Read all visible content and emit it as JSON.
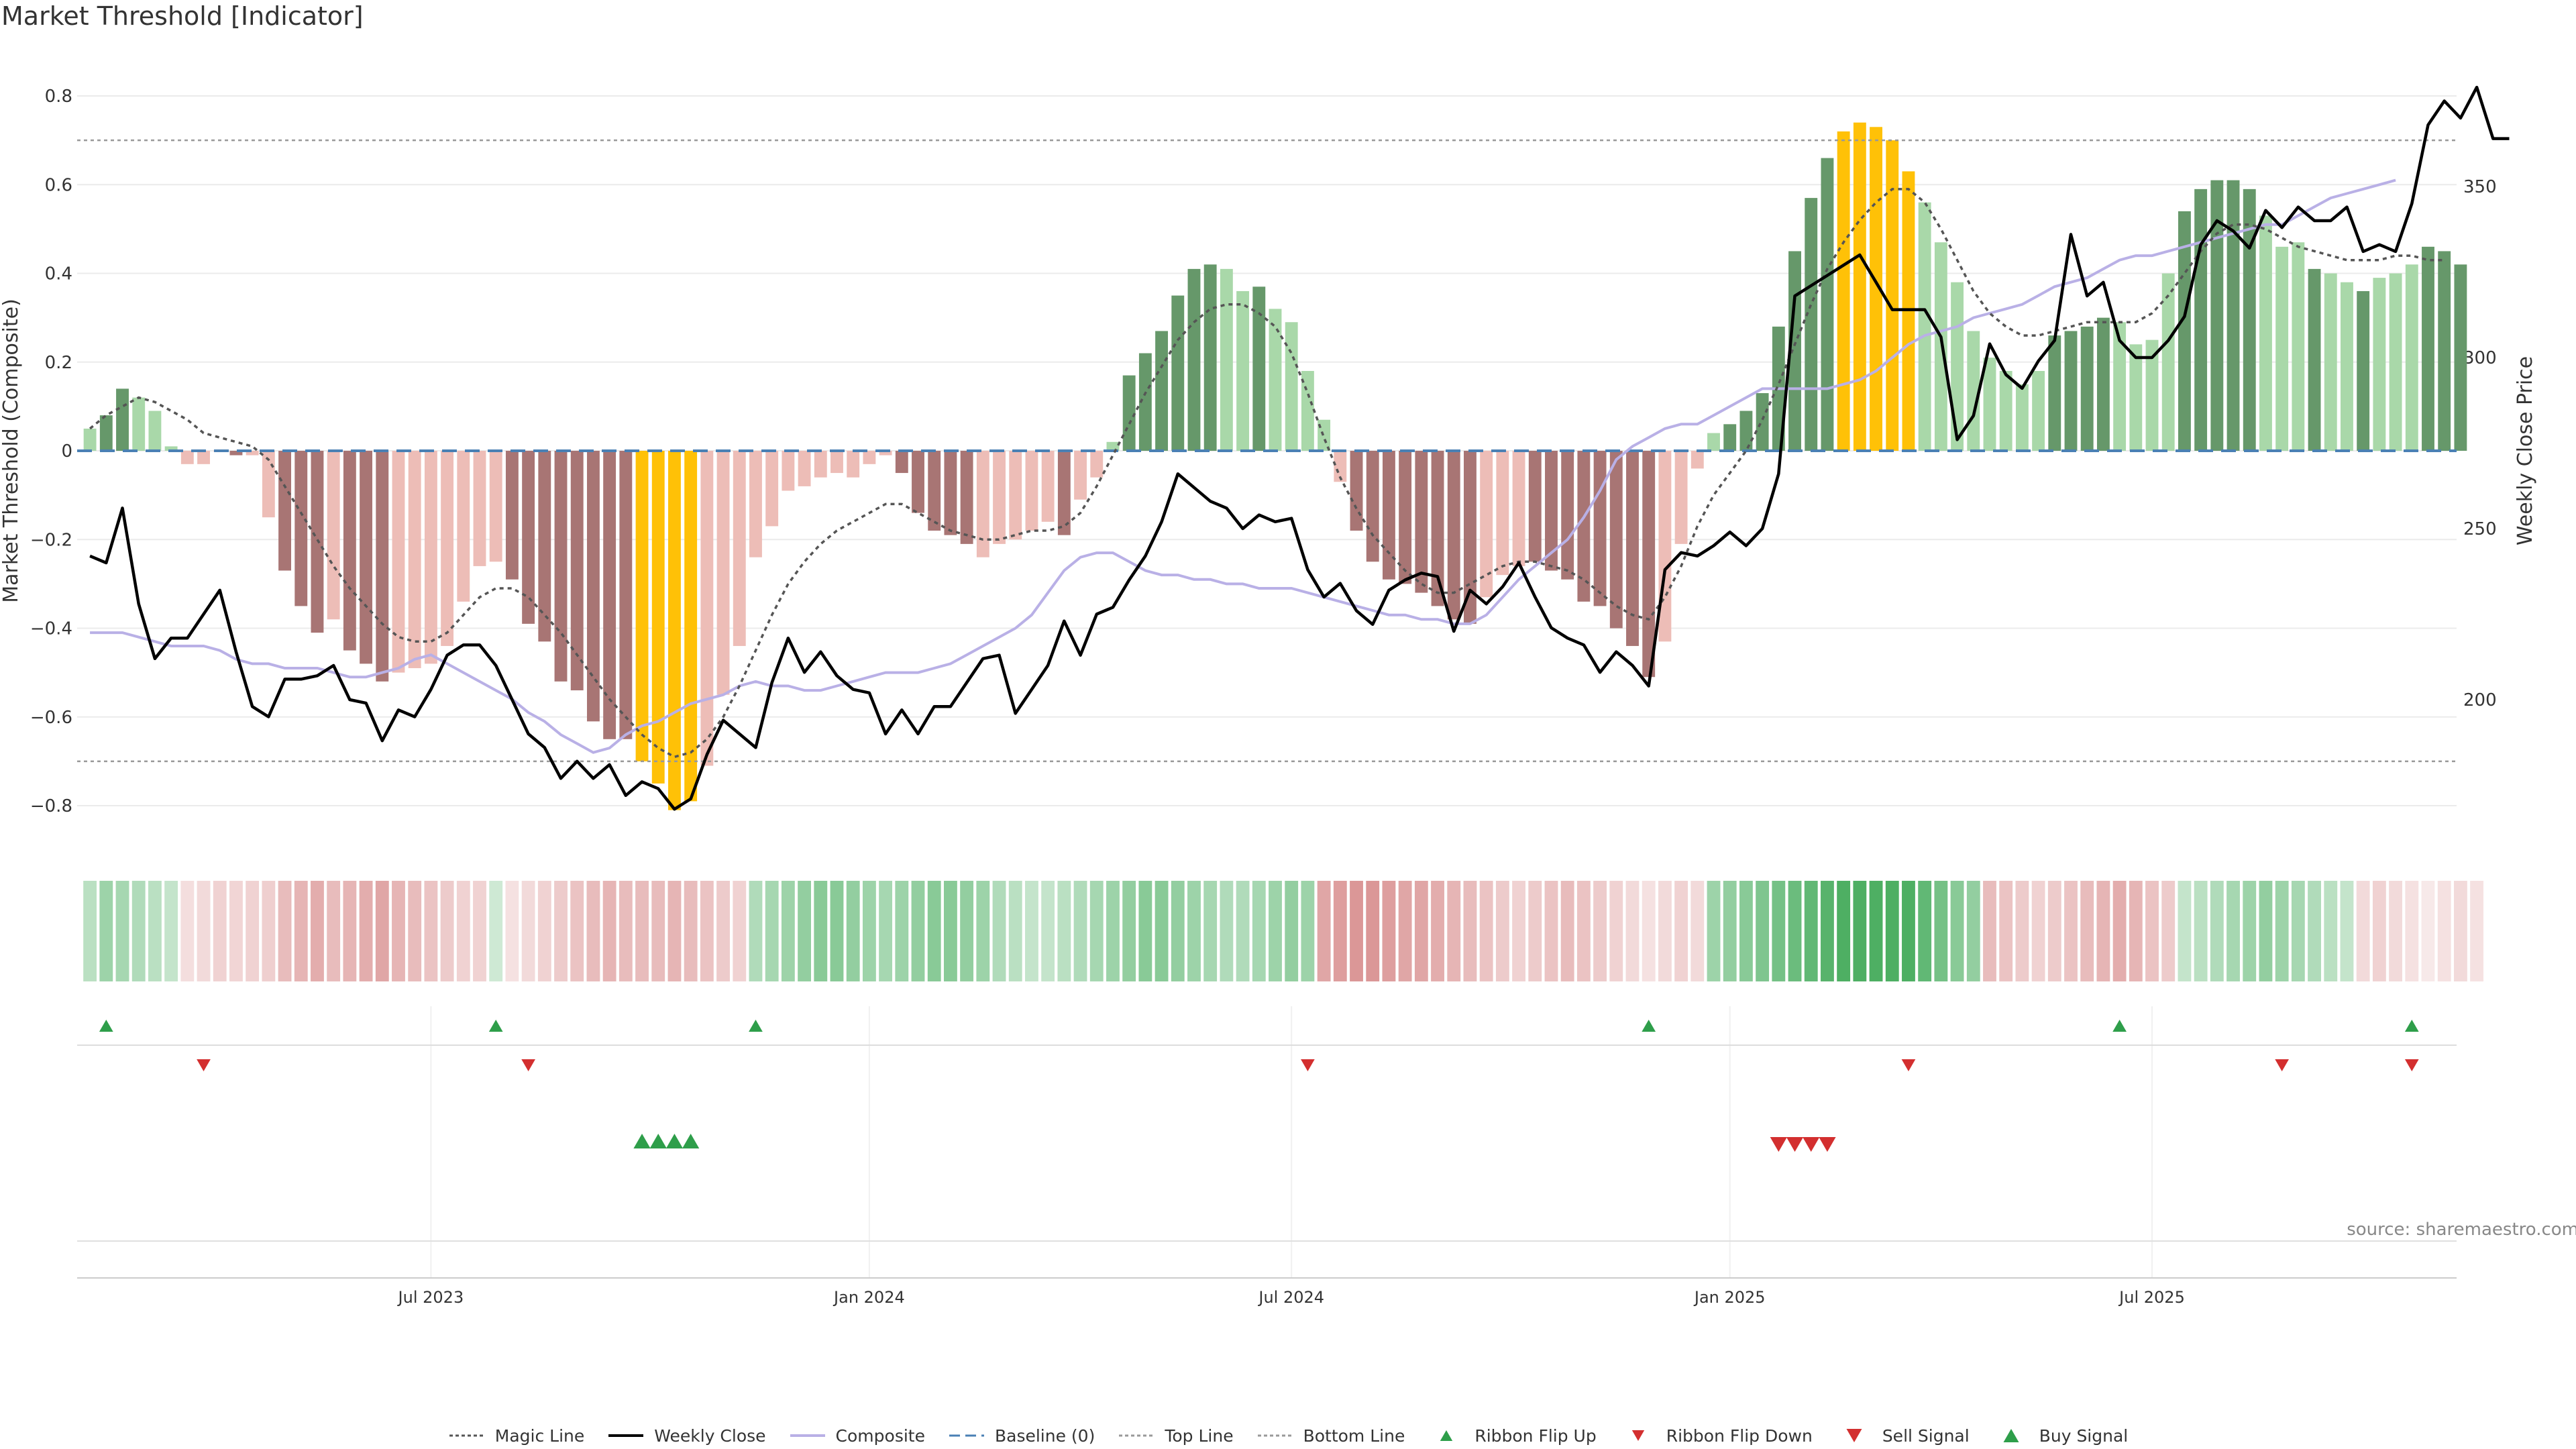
{
  "title": "Market Threshold [Indicator]",
  "source": "source: sharemaestro.com",
  "colors": {
    "bar_strong_pos": "#66986a",
    "bar_weak_pos": "#a9d8a9",
    "bar_strong_neg": "#a87574",
    "bar_weak_neg": "#edbdb7",
    "bar_extreme": "#ffc107",
    "magic": "#555555",
    "close": "#000000",
    "composite": "#b9b0e6",
    "baseline": "#4a80b4",
    "threshold_line": "#999999",
    "buy": "#2e9e4a",
    "sell": "#d32f2f"
  },
  "chart_data": {
    "type": "bar",
    "left_axis": {
      "label": "Market Threshold (Composite)",
      "ylim": [
        -0.9,
        0.9
      ],
      "ticks": [
        "0.8",
        "0.6",
        "0.4",
        "0.2",
        "0",
        "−0.2",
        "−0.4",
        "−0.6",
        "−0.8"
      ],
      "tick_values": [
        0.8,
        0.6,
        0.4,
        0.2,
        0,
        -0.2,
        -0.4,
        -0.6,
        -0.8
      ]
    },
    "right_axis": {
      "label": "Weekly Close Price",
      "ylim": [
        172,
        390
      ],
      "ticks": [
        "350",
        "300",
        "250",
        "200"
      ],
      "tick_values": [
        350,
        300,
        250,
        200
      ]
    },
    "x_axis": {
      "ticks": [
        "Jul 2023",
        "Jan 2024",
        "Jul 2024",
        "Jan 2025",
        "Jul 2025"
      ],
      "tick_weeks": [
        21,
        48,
        74,
        101,
        127
      ]
    },
    "top_line": 0.7,
    "bottom_line": -0.7,
    "baseline": 0,
    "bars": [
      0.05,
      0.08,
      0.14,
      0.12,
      0.09,
      0.01,
      -0.03,
      -0.03,
      0,
      -0.01,
      -0.01,
      -0.15,
      -0.27,
      -0.35,
      -0.41,
      -0.38,
      -0.45,
      -0.48,
      -0.52,
      -0.5,
      -0.49,
      -0.48,
      -0.44,
      -0.34,
      -0.26,
      -0.25,
      -0.29,
      -0.39,
      -0.43,
      -0.52,
      -0.54,
      -0.61,
      -0.65,
      -0.65,
      -0.7,
      -0.75,
      -0.81,
      -0.79,
      -0.71,
      -0.55,
      -0.44,
      -0.24,
      -0.17,
      -0.09,
      -0.08,
      -0.06,
      -0.05,
      -0.06,
      -0.03,
      -0.01,
      -0.05,
      -0.14,
      -0.18,
      -0.19,
      -0.21,
      -0.24,
      -0.21,
      -0.2,
      -0.18,
      -0.16,
      -0.19,
      -0.11,
      -0.06,
      0.02,
      0.17,
      0.22,
      0.27,
      0.35,
      0.41,
      0.42,
      0.41,
      0.36,
      0.37,
      0.32,
      0.29,
      0.18,
      0.07,
      -0.07,
      -0.18,
      -0.25,
      -0.29,
      -0.3,
      -0.32,
      -0.35,
      -0.38,
      -0.39,
      -0.33,
      -0.28,
      -0.26,
      -0.25,
      -0.27,
      -0.29,
      -0.34,
      -0.35,
      -0.4,
      -0.44,
      -0.51,
      -0.43,
      -0.21,
      -0.04,
      0.04,
      0.06,
      0.09,
      0.13,
      0.28,
      0.45,
      0.57,
      0.66,
      0.72,
      0.74,
      0.73,
      0.7,
      0.63,
      0.56,
      0.47,
      0.38,
      0.27,
      0.21,
      0.18,
      0.15,
      0.18,
      0.26,
      0.27,
      0.28,
      0.3,
      0.29,
      0.24,
      0.25,
      0.4,
      0.54,
      0.59,
      0.61,
      0.61,
      0.59,
      0.53,
      0.46,
      0.47,
      0.41,
      0.4,
      0.38,
      0.36,
      0.39,
      0.4,
      0.42,
      0.46,
      0.45,
      0.42
    ],
    "bar_categories": [
      "weak_pos",
      "strong_pos",
      "strong_pos",
      "weak_pos",
      "weak_pos",
      "weak_pos",
      "weak_neg",
      "weak_neg",
      "weak_neg",
      "strong_neg",
      "weak_neg",
      "weak_neg",
      "strong_neg",
      "strong_neg",
      "strong_neg",
      "weak_neg",
      "strong_neg",
      "strong_neg",
      "strong_neg",
      "weak_neg",
      "weak_neg",
      "weak_neg",
      "weak_neg",
      "weak_neg",
      "weak_neg",
      "weak_neg",
      "strong_neg",
      "strong_neg",
      "strong_neg",
      "strong_neg",
      "strong_neg",
      "strong_neg",
      "strong_neg",
      "strong_neg",
      "extreme",
      "extreme",
      "extreme",
      "extreme",
      "weak_neg",
      "weak_neg",
      "weak_neg",
      "weak_neg",
      "weak_neg",
      "weak_neg",
      "weak_neg",
      "weak_neg",
      "weak_neg",
      "weak_neg",
      "weak_neg",
      "weak_neg",
      "strong_neg",
      "strong_neg",
      "strong_neg",
      "strong_neg",
      "strong_neg",
      "weak_neg",
      "weak_neg",
      "weak_neg",
      "weak_neg",
      "weak_neg",
      "strong_neg",
      "weak_neg",
      "weak_neg",
      "weak_pos",
      "strong_pos",
      "strong_pos",
      "strong_pos",
      "strong_pos",
      "strong_pos",
      "strong_pos",
      "weak_pos",
      "weak_pos",
      "strong_pos",
      "weak_pos",
      "weak_pos",
      "weak_pos",
      "weak_pos",
      "weak_neg",
      "strong_neg",
      "strong_neg",
      "strong_neg",
      "strong_neg",
      "strong_neg",
      "strong_neg",
      "strong_neg",
      "strong_neg",
      "weak_neg",
      "weak_neg",
      "weak_neg",
      "strong_neg",
      "strong_neg",
      "strong_neg",
      "strong_neg",
      "strong_neg",
      "strong_neg",
      "strong_neg",
      "strong_neg",
      "weak_neg",
      "weak_neg",
      "weak_neg",
      "weak_pos",
      "strong_pos",
      "strong_pos",
      "strong_pos",
      "strong_pos",
      "strong_pos",
      "strong_pos",
      "strong_pos",
      "extreme",
      "extreme",
      "extreme",
      "extreme",
      "extreme",
      "weak_pos",
      "weak_pos",
      "weak_pos",
      "weak_pos",
      "weak_pos",
      "weak_pos",
      "weak_pos",
      "weak_pos",
      "strong_pos",
      "strong_pos",
      "strong_pos",
      "strong_pos",
      "weak_pos",
      "weak_pos",
      "weak_pos",
      "weak_pos",
      "strong_pos",
      "strong_pos",
      "strong_pos",
      "strong_pos",
      "strong_pos",
      "weak_pos",
      "weak_pos",
      "weak_pos",
      "strong_pos",
      "weak_pos",
      "weak_pos",
      "strong_pos",
      "weak_pos",
      "weak_pos",
      "weak_pos",
      "strong_pos",
      "strong_pos",
      "strong_pos",
      "strong_pos",
      "weak_pos",
      "weak_pos"
    ],
    "magic_line": [
      0.05,
      0.08,
      0.1,
      0.12,
      0.11,
      0.09,
      0.07,
      0.04,
      0.03,
      0.02,
      0.01,
      -0.02,
      -0.08,
      -0.14,
      -0.2,
      -0.26,
      -0.31,
      -0.35,
      -0.39,
      -0.42,
      -0.43,
      -0.43,
      -0.41,
      -0.37,
      -0.33,
      -0.31,
      -0.31,
      -0.33,
      -0.37,
      -0.41,
      -0.46,
      -0.51,
      -0.56,
      -0.6,
      -0.64,
      -0.67,
      -0.69,
      -0.68,
      -0.65,
      -0.6,
      -0.53,
      -0.45,
      -0.37,
      -0.3,
      -0.25,
      -0.21,
      -0.18,
      -0.16,
      -0.14,
      -0.12,
      -0.12,
      -0.14,
      -0.16,
      -0.18,
      -0.19,
      -0.2,
      -0.2,
      -0.19,
      -0.18,
      -0.18,
      -0.17,
      -0.14,
      -0.08,
      -0.01,
      0.06,
      0.13,
      0.19,
      0.25,
      0.29,
      0.32,
      0.33,
      0.33,
      0.31,
      0.28,
      0.22,
      0.13,
      0.03,
      -0.06,
      -0.13,
      -0.19,
      -0.23,
      -0.27,
      -0.3,
      -0.32,
      -0.32,
      -0.3,
      -0.28,
      -0.26,
      -0.25,
      -0.25,
      -0.26,
      -0.27,
      -0.29,
      -0.32,
      -0.35,
      -0.37,
      -0.38,
      -0.33,
      -0.26,
      -0.17,
      -0.1,
      -0.05,
      0.0,
      0.07,
      0.15,
      0.24,
      0.33,
      0.41,
      0.47,
      0.52,
      0.56,
      0.59,
      0.59,
      0.56,
      0.5,
      0.43,
      0.36,
      0.31,
      0.28,
      0.26,
      0.26,
      0.27,
      0.28,
      0.29,
      0.29,
      0.29,
      0.29,
      0.31,
      0.35,
      0.4,
      0.45,
      0.49,
      0.51,
      0.51,
      0.5,
      0.48,
      0.46,
      0.45,
      0.44,
      0.43,
      0.43,
      0.43,
      0.44,
      0.44,
      0.43,
      0.43
    ],
    "composite_line": [
      -0.41,
      -0.41,
      -0.41,
      -0.42,
      -0.43,
      -0.44,
      -0.44,
      -0.44,
      -0.45,
      -0.47,
      -0.48,
      -0.48,
      -0.49,
      -0.49,
      -0.49,
      -0.5,
      -0.51,
      -0.51,
      -0.5,
      -0.49,
      -0.47,
      -0.46,
      -0.48,
      -0.5,
      -0.52,
      -0.54,
      -0.56,
      -0.59,
      -0.61,
      -0.64,
      -0.66,
      -0.68,
      -0.67,
      -0.64,
      -0.62,
      -0.61,
      -0.59,
      -0.57,
      -0.56,
      -0.55,
      -0.53,
      -0.52,
      -0.53,
      -0.53,
      -0.54,
      -0.54,
      -0.53,
      -0.52,
      -0.51,
      -0.5,
      -0.5,
      -0.5,
      -0.49,
      -0.48,
      -0.46,
      -0.44,
      -0.42,
      -0.4,
      -0.37,
      -0.32,
      -0.27,
      -0.24,
      -0.23,
      -0.23,
      -0.25,
      -0.27,
      -0.28,
      -0.28,
      -0.29,
      -0.29,
      -0.3,
      -0.3,
      -0.31,
      -0.31,
      -0.31,
      -0.32,
      -0.33,
      -0.34,
      -0.35,
      -0.36,
      -0.37,
      -0.37,
      -0.38,
      -0.38,
      -0.39,
      -0.39,
      -0.37,
      -0.33,
      -0.29,
      -0.26,
      -0.23,
      -0.2,
      -0.15,
      -0.09,
      -0.02,
      0.01,
      0.03,
      0.05,
      0.06,
      0.06,
      0.08,
      0.1,
      0.12,
      0.14,
      0.14,
      0.14,
      0.14,
      0.14,
      0.15,
      0.16,
      0.18,
      0.21,
      0.24,
      0.26,
      0.27,
      0.28,
      0.3,
      0.31,
      0.32,
      0.33,
      0.35,
      0.37,
      0.38,
      0.39,
      0.41,
      0.43,
      0.44,
      0.44,
      0.45,
      0.46,
      0.47,
      0.48,
      0.49,
      0.5,
      0.51,
      0.51,
      0.53,
      0.55,
      0.57,
      0.58,
      0.59,
      0.6,
      0.61
    ],
    "weekly_close": [
      242,
      240,
      256,
      228,
      212,
      218,
      218,
      225,
      232,
      214,
      198,
      195,
      206,
      206,
      207,
      210,
      200,
      199,
      188,
      197,
      195,
      203,
      213,
      216,
      216,
      210,
      200,
      190,
      186,
      177,
      182,
      177,
      181,
      172,
      176,
      174,
      168,
      171,
      184,
      194,
      190,
      186,
      205,
      218,
      208,
      214,
      207,
      203,
      202,
      190,
      197,
      190,
      198,
      198,
      205,
      212,
      213,
      196,
      203,
      210,
      223,
      213,
      225,
      227,
      235,
      242,
      252,
      266,
      262,
      258,
      256,
      250,
      254,
      252,
      253,
      238,
      230,
      234,
      226,
      222,
      232,
      235,
      237,
      236,
      220,
      232,
      228,
      233,
      240,
      230,
      221,
      218,
      216,
      208,
      214,
      210,
      204,
      238,
      243,
      242,
      245,
      249,
      245,
      250,
      266,
      318,
      321,
      324,
      327,
      330,
      322,
      314,
      314,
      314,
      306,
      276,
      283,
      304,
      295,
      291,
      299,
      305,
      336,
      318,
      322,
      305,
      300,
      300,
      305,
      312,
      333,
      340,
      337,
      332,
      343,
      338,
      344,
      340,
      340,
      344,
      331,
      333,
      331,
      345,
      368,
      375,
      370,
      379,
      364,
      364
    ],
    "ribbon_strength": [
      0.35,
      0.5,
      0.45,
      0.4,
      0.35,
      0.3,
      0.22,
      0.25,
      0.3,
      0.28,
      0.3,
      0.32,
      0.45,
      0.5,
      0.55,
      0.45,
      0.5,
      0.55,
      0.6,
      0.5,
      0.45,
      0.4,
      0.35,
      0.3,
      0.3,
      0.25,
      0.2,
      0.25,
      0.3,
      0.35,
      0.4,
      0.45,
      0.5,
      0.45,
      0.45,
      0.45,
      0.5,
      0.45,
      0.4,
      0.35,
      0.3,
      0.4,
      0.45,
      0.5,
      0.55,
      0.6,
      0.6,
      0.55,
      0.5,
      0.45,
      0.5,
      0.55,
      0.6,
      0.6,
      0.55,
      0.5,
      0.4,
      0.35,
      0.3,
      0.3,
      0.35,
      0.4,
      0.45,
      0.5,
      0.55,
      0.6,
      0.6,
      0.55,
      0.5,
      0.45,
      0.4,
      0.4,
      0.45,
      0.5,
      0.55,
      0.5,
      0.6,
      0.65,
      0.7,
      0.7,
      0.65,
      0.6,
      0.6,
      0.55,
      0.5,
      0.45,
      0.4,
      0.35,
      0.3,
      0.35,
      0.4,
      0.45,
      0.4,
      0.35,
      0.3,
      0.25,
      0.2,
      0.25,
      0.3,
      0.25,
      0.5,
      0.55,
      0.6,
      0.65,
      0.7,
      0.75,
      0.8,
      0.85,
      0.9,
      0.9,
      0.9,
      0.9,
      0.9,
      0.8,
      0.7,
      0.6,
      0.55,
      0.45,
      0.4,
      0.35,
      0.3,
      0.35,
      0.4,
      0.45,
      0.5,
      0.55,
      0.5,
      0.4,
      0.35,
      0.3,
      0.35,
      0.4,
      0.45,
      0.5,
      0.55,
      0.5,
      0.45,
      0.4,
      0.35,
      0.3,
      0.25,
      0.3,
      0.25,
      0.2,
      0.15,
      0.2,
      0.25,
      0.2
    ],
    "ribbon_sign": [
      1,
      1,
      1,
      1,
      1,
      1,
      -1,
      -1,
      -1,
      -1,
      -1,
      -1,
      -1,
      -1,
      -1,
      -1,
      -1,
      -1,
      -1,
      -1,
      -1,
      -1,
      -1,
      -1,
      -1,
      1,
      -1,
      -1,
      -1,
      -1,
      -1,
      -1,
      -1,
      -1,
      -1,
      -1,
      -1,
      -1,
      -1,
      -1,
      -1,
      1,
      1,
      1,
      1,
      1,
      1,
      1,
      1,
      1,
      1,
      1,
      1,
      1,
      1,
      1,
      1,
      1,
      1,
      1,
      1,
      1,
      1,
      1,
      1,
      1,
      1,
      1,
      1,
      1,
      1,
      1,
      1,
      1,
      1,
      1,
      -1,
      -1,
      -1,
      -1,
      -1,
      -1,
      -1,
      -1,
      -1,
      -1,
      -1,
      -1,
      -1,
      -1,
      -1,
      -1,
      -1,
      -1,
      -1,
      -1,
      -1,
      -1,
      -1,
      -1,
      1,
      1,
      1,
      1,
      1,
      1,
      1,
      1,
      1,
      1,
      1,
      1,
      1,
      1,
      1,
      1,
      1,
      -1,
      -1,
      -1,
      -1,
      -1,
      -1,
      -1,
      -1,
      -1,
      -1,
      -1,
      -1,
      1,
      1,
      1,
      1,
      1,
      1,
      1,
      1,
      1,
      1,
      1,
      -1,
      -1,
      -1,
      -1,
      -1,
      -1,
      -1,
      -1,
      -1
    ],
    "ribbon_flip_up_weeks": [
      1,
      25,
      41,
      96,
      125,
      143
    ],
    "ribbon_flip_down_weeks": [
      7,
      27,
      75,
      112,
      135,
      143
    ],
    "buy_signal_weeks": [
      34,
      35,
      36,
      37
    ],
    "sell_signal_weeks": [
      104,
      105,
      106,
      107
    ],
    "legend": [
      {
        "label": "Magic Line",
        "kind": "dotted",
        "color": "#555555"
      },
      {
        "label": "Weekly Close",
        "kind": "solid",
        "color": "#000000"
      },
      {
        "label": "Composite",
        "kind": "solid",
        "color": "#b9b0e6"
      },
      {
        "label": "Baseline (0)",
        "kind": "dashed",
        "color": "#4a80b4"
      },
      {
        "label": "Top Line",
        "kind": "dotted",
        "color": "#999999"
      },
      {
        "label": "Bottom Line",
        "kind": "dotted",
        "color": "#999999"
      },
      {
        "label": "Ribbon Flip Up",
        "kind": "tri-up-small",
        "color": "#2e9e4a"
      },
      {
        "label": "Ribbon Flip Down",
        "kind": "tri-down-small",
        "color": "#d32f2f"
      },
      {
        "label": "Sell Signal",
        "kind": "tri-down",
        "color": "#d32f2f"
      },
      {
        "label": "Buy Signal",
        "kind": "tri-up",
        "color": "#2e9e4a"
      }
    ]
  }
}
